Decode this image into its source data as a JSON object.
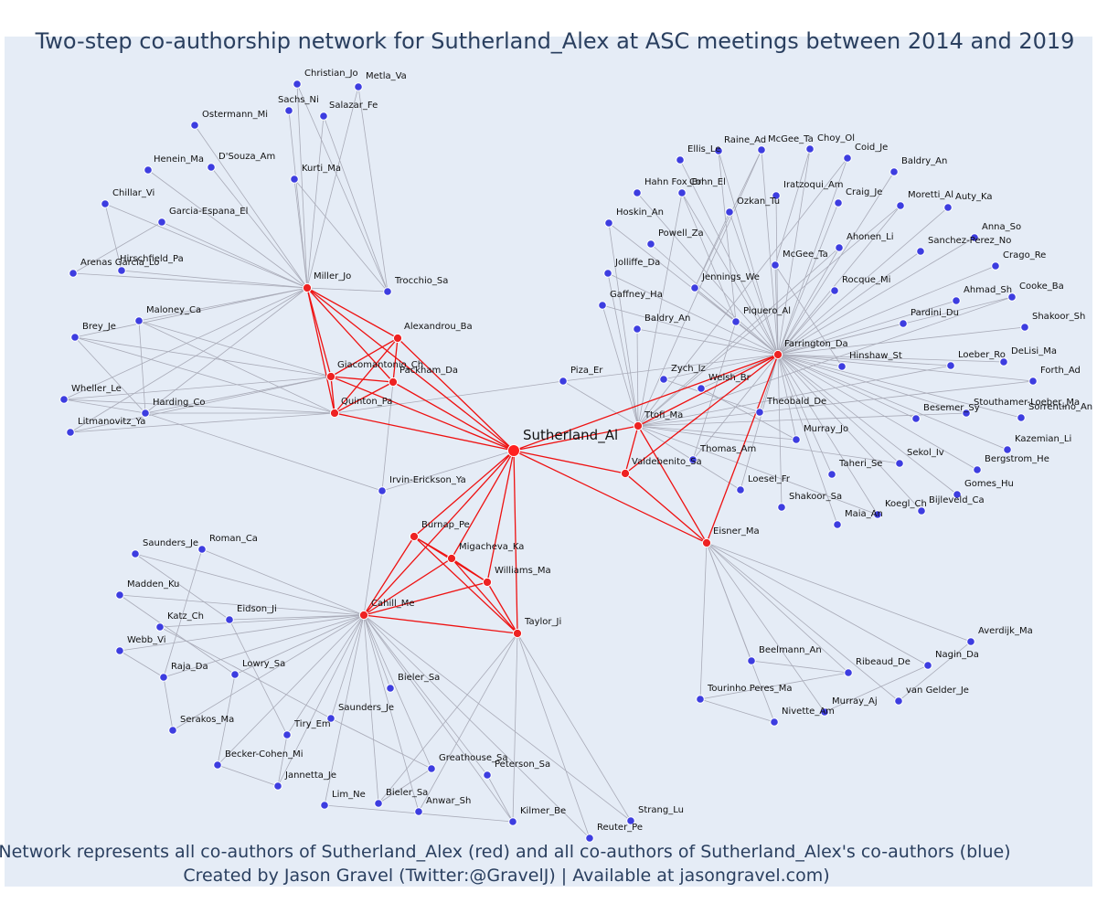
{
  "title": "Two-step co-authorship network for Sutherland_Alex at ASC meetings between 2014 and 2019",
  "caption_line1": "Network represents all co-authors of Sutherland_Alex (red) and all co-authors of Sutherland_Alex's co-authors (blue)",
  "caption_line2": "Created by Jason Gravel (Twitter:@GravelJ) | Available at jasongravel.com)",
  "colors": {
    "background": "#e5ecf6",
    "ego": "#ff2020",
    "coauthor": "#ee2222",
    "second_step": "#3d3de0",
    "ego_edge": "#ee1111",
    "other_edge": "#a9abb8"
  },
  "center_label": "Sutherland_Al",
  "red_nodes": [
    "Miller_Jo",
    "Alexandrou_Ba",
    "Giacomantonio_Ch",
    "Packham_Da",
    "Quinton_Pa",
    "Farrington_Da",
    "Ttofi_Ma",
    "Valdebenito_Sa",
    "Eisner_Ma",
    "Burnap_Pe",
    "Migacheva_Ka",
    "Williams_Ma",
    "Cahill_Me",
    "Taylor_Ji"
  ],
  "blue_nodes": [
    "Christian_Jo",
    "Metla_Va",
    "Sachs_Ni",
    "Ostermann_Mi",
    "Salazar_Fe",
    "Henein_Ma",
    "D'Souza_Am",
    "Kurti_Ma",
    "Chillar_Vi",
    "Garcia-Espana_El",
    "Hirschfield_Pa",
    "Arenas Garcia_Lo",
    "Trocchio_Sa",
    "Maloney_Ca",
    "Brey_Je",
    "Wheller_Le",
    "Harding_Co",
    "Litmanovitz_Ya",
    "Piza_Er",
    "Irvin-Erickson_Ya",
    "Raine_Ad",
    "McGee_Ta",
    "Choy_Ol",
    "Ellis_Le",
    "Coid_Je",
    "Baldry_An",
    "Hahn Fox_Br",
    "Cohn_El",
    "Iratzoqui_Am",
    "Craig_Je",
    "Moretti_Al",
    "Auty_Ka",
    "Ozkan_Tu",
    "Hoskin_An",
    "Anna_So",
    "Powell_Za",
    "Ahonen_Li",
    "Sanchez-Perez_No",
    "McGee_Ta",
    "Jolliffe_Da",
    "Crago_Re",
    "Ahmad_Sh",
    "Cooke_Ba",
    "Jennings_We",
    "Rocque_Mi",
    "Gaffney_Ha",
    "Piquero_Al",
    "Pardini_Du",
    "Baldry_An",
    "Shakoor_Sh",
    "Hinshaw_St",
    "Loeber_Ro",
    "Zych_Iz",
    "DeLisi_Ma",
    "Forth_Ad",
    "Welsh_Br",
    "Theobald_De",
    "Stouthamer-Loeber_Ma",
    "Sorrentino_An",
    "Besemer_Sy",
    "Murray_Jo",
    "Kazemian_Li",
    "Thomas_Am",
    "Sekol_Iv",
    "Bergstrom_He",
    "Taheri_Se",
    "Loesel_Fr",
    "Gomes_Hu",
    "Shakoor_Sa",
    "Koegl_Ch",
    "Bijleveld_Ca",
    "Maia_An",
    "Saunders_Je",
    "Roman_Ca",
    "Madden_Ku",
    "Katz_Ch",
    "Eidson_Ji",
    "Webb_Vi",
    "Raja_Da",
    "Lowry_Sa",
    "Bieler_Sa",
    "Saunders_Je",
    "Serakos_Ma",
    "Tiry_Em",
    "Becker-Cohen_Mi",
    "Greathouse_Sa",
    "Peterson_Sa",
    "Jannetta_Je",
    "Lim_Ne",
    "Bieler_Sa",
    "Anwar_Sh",
    "Kilmer_Be",
    "Strang_Lu",
    "Reuter_Pe",
    "Averdijk_Ma",
    "Nagin_Da",
    "Beelmann_An",
    "Ribeaud_De",
    "van Gelder_Je",
    "Tourinho Peres_Ma",
    "Murray_Aj",
    "Nivette_Am"
  ]
}
